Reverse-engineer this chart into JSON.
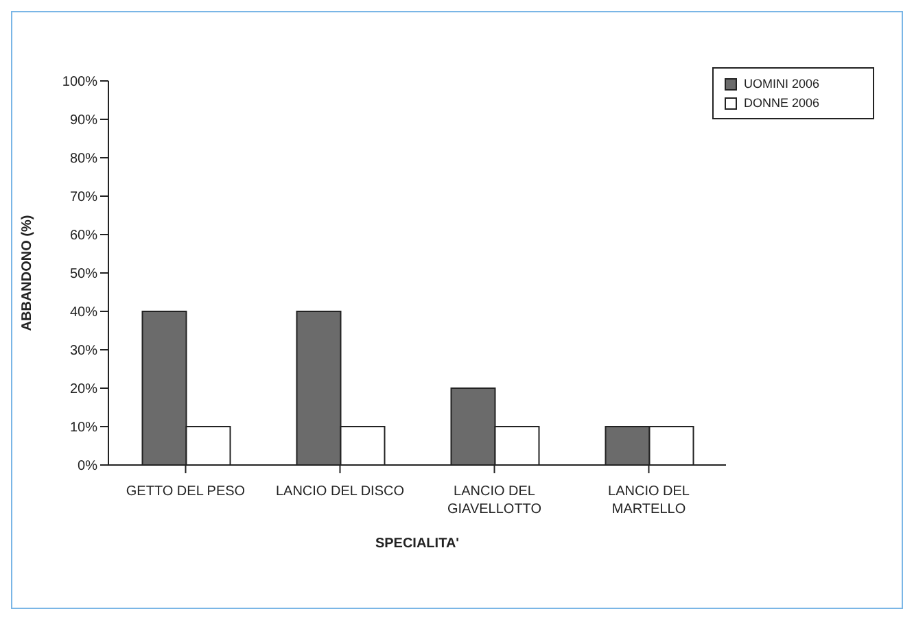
{
  "chart_data": {
    "type": "bar",
    "xlabel": "SPECIALITA'",
    "ylabel": "ABBANDONO (%)",
    "categories": [
      "GETTO DEL PESO",
      "LANCIO DEL DISCO",
      "LANCIO DEL GIAVELLOTTO",
      "LANCIO DEL MARTELLO"
    ],
    "series": [
      {
        "name": "UOMINI 2006",
        "color": "#6b6b6b",
        "values": [
          40,
          40,
          20,
          10
        ]
      },
      {
        "name": "DONNE 2006",
        "color": "#ffffff",
        "values": [
          10,
          10,
          10,
          10
        ]
      }
    ],
    "ylim": [
      0,
      100
    ],
    "yticks": [
      {
        "value": 0,
        "label": "0%"
      },
      {
        "value": 10,
        "label": "10%"
      },
      {
        "value": 20,
        "label": "20%"
      },
      {
        "value": 30,
        "label": "30%"
      },
      {
        "value": 40,
        "label": "40%"
      },
      {
        "value": 50,
        "label": "50%"
      },
      {
        "value": 60,
        "label": "60%"
      },
      {
        "value": 70,
        "label": "70%"
      },
      {
        "value": 80,
        "label": "80%"
      },
      {
        "value": 90,
        "label": "90%"
      },
      {
        "value": 100,
        "label": "100%"
      }
    ],
    "grid": false,
    "legend": "top right"
  }
}
